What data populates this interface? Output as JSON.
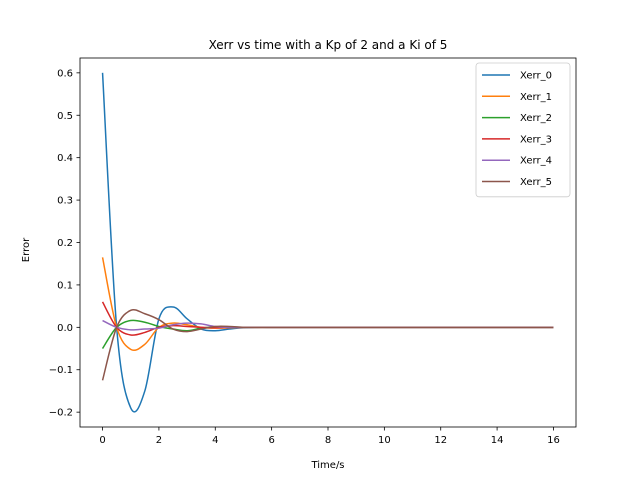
{
  "chart_data": {
    "type": "line",
    "title": "Xerr vs time with a Kp of 2 and a Ki of 5",
    "xlabel": "Time/s",
    "ylabel": "Error",
    "xlim": [
      -0.8,
      16.8
    ],
    "ylim": [
      -0.235,
      0.635
    ],
    "xticks": [
      0,
      2,
      4,
      6,
      8,
      10,
      12,
      14,
      16
    ],
    "yticks": [
      -0.2,
      -0.1,
      0.0,
      0.1,
      0.2,
      0.3,
      0.4,
      0.5,
      0.6
    ],
    "ytick_labels": [
      "−0.2",
      "−0.1",
      "0.0",
      "0.1",
      "0.2",
      "0.3",
      "0.4",
      "0.5",
      "0.6"
    ],
    "grid": false,
    "legend": "top-right",
    "x": [
      0,
      0.5,
      1,
      1.5,
      2,
      2.5,
      3,
      3.5,
      4,
      4.5,
      5,
      5.5,
      6,
      6.5,
      7,
      8,
      9,
      10,
      11,
      12,
      13,
      14,
      15,
      16
    ],
    "series": [
      {
        "name": "Xerr_0",
        "color": "#1f77b4",
        "values": [
          0.6,
          0.0,
          -0.19,
          -0.15,
          0.02,
          0.048,
          0.02,
          -0.004,
          -0.008,
          -0.004,
          -0.001,
          0.0,
          0.0,
          0.0,
          0.0,
          0.0,
          0.0,
          0.0,
          0.0,
          0.0,
          0.0,
          0.0,
          0.0,
          0.0
        ]
      },
      {
        "name": "Xerr_1",
        "color": "#ff7f0e",
        "values": [
          0.165,
          0.0,
          -0.052,
          -0.04,
          0.0,
          0.01,
          0.006,
          0.0,
          -0.002,
          -0.001,
          0.0,
          0.0,
          0.0,
          0.0,
          0.0,
          0.0,
          0.0,
          0.0,
          0.0,
          0.0,
          0.0,
          0.0,
          0.0,
          0.0
        ]
      },
      {
        "name": "Xerr_2",
        "color": "#2ca02c",
        "values": [
          -0.05,
          0.0,
          0.016,
          0.012,
          0.002,
          -0.004,
          -0.008,
          -0.002,
          0.001,
          0.001,
          0.0,
          0.0,
          0.0,
          0.0,
          0.0,
          0.0,
          0.0,
          0.0,
          0.0,
          0.0,
          0.0,
          0.0,
          0.0,
          0.0
        ]
      },
      {
        "name": "Xerr_3",
        "color": "#d62728",
        "values": [
          0.06,
          0.0,
          -0.018,
          -0.012,
          0.0,
          0.004,
          0.002,
          0.0,
          -0.001,
          0.0,
          0.0,
          0.0,
          0.0,
          0.0,
          0.0,
          0.0,
          0.0,
          0.0,
          0.0,
          0.0,
          0.0,
          0.0,
          0.0,
          0.0
        ]
      },
      {
        "name": "Xerr_4",
        "color": "#9467bd",
        "values": [
          0.016,
          0.0,
          -0.006,
          -0.004,
          -0.002,
          0.006,
          0.01,
          0.008,
          0.002,
          0.0,
          0.0,
          0.0,
          0.0,
          0.0,
          0.0,
          0.0,
          0.0,
          0.0,
          0.0,
          0.0,
          0.0,
          0.0,
          0.0,
          0.0
        ]
      },
      {
        "name": "Xerr_5",
        "color": "#8c564b",
        "values": [
          -0.125,
          0.0,
          0.04,
          0.032,
          0.018,
          -0.004,
          -0.01,
          -0.004,
          0.002,
          0.002,
          0.0,
          0.0,
          0.0,
          0.0,
          0.0,
          0.0,
          0.0,
          0.0,
          0.0,
          0.0,
          0.0,
          0.0,
          0.0,
          0.0
        ]
      }
    ]
  }
}
